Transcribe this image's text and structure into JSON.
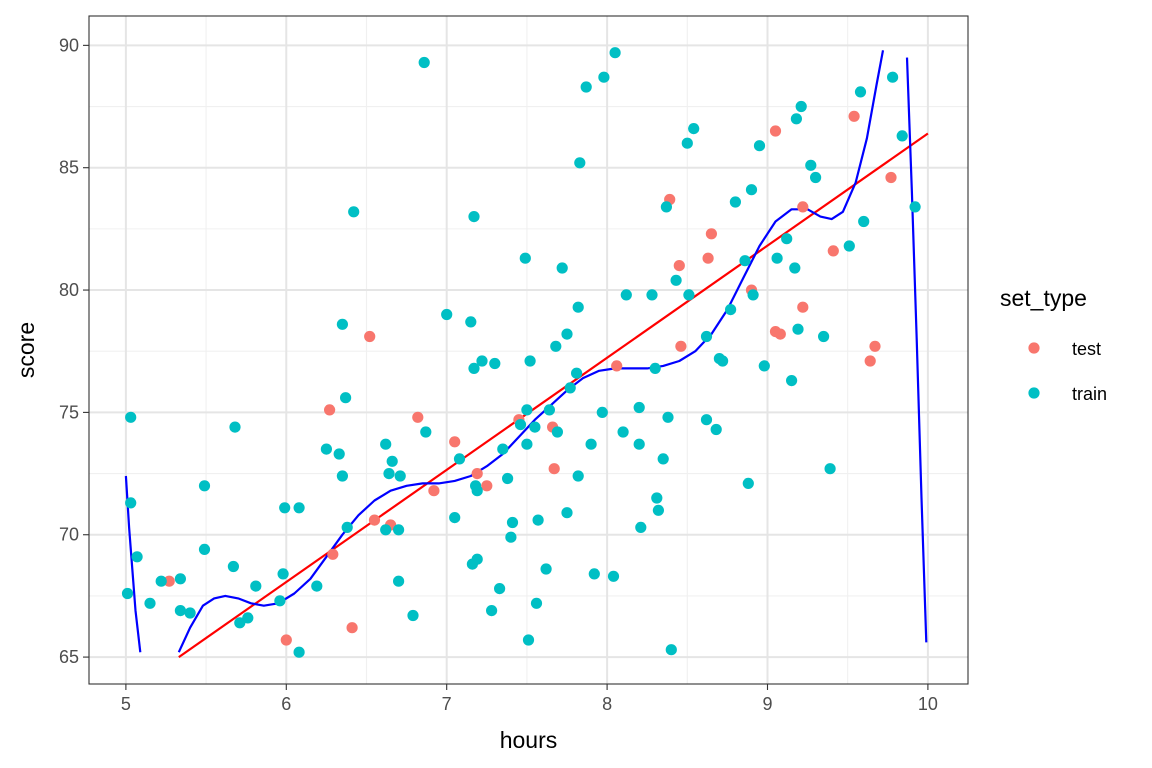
{
  "chart_data": {
    "type": "scatter",
    "xlabel": "hours",
    "ylabel": "score",
    "xlim": [
      4.77,
      10.25
    ],
    "ylim": [
      63.9,
      91.2
    ],
    "x_ticks": [
      5,
      6,
      7,
      8,
      9,
      10
    ],
    "y_ticks": [
      65,
      70,
      75,
      80,
      85,
      90
    ],
    "x_tick_labels": [
      "5",
      "6",
      "7",
      "8",
      "9",
      "10"
    ],
    "y_tick_labels": [
      "65",
      "70",
      "75",
      "80",
      "85",
      "90"
    ],
    "grid": true,
    "legend": {
      "title": "set_type",
      "position": "right",
      "entries": [
        {
          "label": "test",
          "color": "#F8766D"
        },
        {
          "label": "train",
          "color": "#00BFC4"
        }
      ]
    },
    "series": [
      {
        "name": "test",
        "color": "#F8766D",
        "points": [
          [
            5.27,
            68.1
          ],
          [
            6.0,
            65.7
          ],
          [
            6.27,
            75.1
          ],
          [
            6.29,
            69.2
          ],
          [
            6.41,
            66.2
          ],
          [
            6.52,
            78.1
          ],
          [
            6.55,
            70.6
          ],
          [
            6.65,
            70.4
          ],
          [
            6.82,
            74.8
          ],
          [
            6.92,
            71.8
          ],
          [
            7.05,
            73.8
          ],
          [
            7.19,
            72.5
          ],
          [
            7.25,
            72.0
          ],
          [
            7.45,
            74.7
          ],
          [
            7.66,
            74.4
          ],
          [
            7.67,
            72.7
          ],
          [
            8.06,
            76.9
          ],
          [
            8.39,
            83.7
          ],
          [
            8.45,
            81.0
          ],
          [
            8.46,
            77.7
          ],
          [
            8.63,
            81.3
          ],
          [
            8.65,
            82.3
          ],
          [
            8.9,
            80.0
          ],
          [
            9.05,
            86.5
          ],
          [
            9.05,
            78.3
          ],
          [
            9.08,
            78.2
          ],
          [
            9.22,
            83.4
          ],
          [
            9.22,
            79.3
          ],
          [
            9.41,
            81.6
          ],
          [
            9.54,
            87.1
          ],
          [
            9.64,
            77.1
          ],
          [
            9.67,
            77.7
          ],
          [
            9.77,
            84.6
          ]
        ]
      },
      {
        "name": "train",
        "color": "#00BFC4",
        "points": [
          [
            5.01,
            67.6
          ],
          [
            5.03,
            74.8
          ],
          [
            5.03,
            71.3
          ],
          [
            5.07,
            69.1
          ],
          [
            5.15,
            67.2
          ],
          [
            5.22,
            68.1
          ],
          [
            5.34,
            66.9
          ],
          [
            5.34,
            68.2
          ],
          [
            5.4,
            66.8
          ],
          [
            5.49,
            72.0
          ],
          [
            5.49,
            69.4
          ],
          [
            5.67,
            68.7
          ],
          [
            5.68,
            74.4
          ],
          [
            5.71,
            66.4
          ],
          [
            5.76,
            66.6
          ],
          [
            5.81,
            67.9
          ],
          [
            5.96,
            67.3
          ],
          [
            5.98,
            68.4
          ],
          [
            5.99,
            71.1
          ],
          [
            6.08,
            65.2
          ],
          [
            6.08,
            71.1
          ],
          [
            6.19,
            67.9
          ],
          [
            6.25,
            73.5
          ],
          [
            6.33,
            73.3
          ],
          [
            6.35,
            78.6
          ],
          [
            6.35,
            72.4
          ],
          [
            6.37,
            75.6
          ],
          [
            6.38,
            70.3
          ],
          [
            6.42,
            83.2
          ],
          [
            6.62,
            73.7
          ],
          [
            6.62,
            70.2
          ],
          [
            6.64,
            72.5
          ],
          [
            6.66,
            73.0
          ],
          [
            6.7,
            70.2
          ],
          [
            6.7,
            68.1
          ],
          [
            6.71,
            72.4
          ],
          [
            6.79,
            66.7
          ],
          [
            6.86,
            89.3
          ],
          [
            6.87,
            74.2
          ],
          [
            7.0,
            79.0
          ],
          [
            7.05,
            70.7
          ],
          [
            7.08,
            73.1
          ],
          [
            7.15,
            78.7
          ],
          [
            7.16,
            68.8
          ],
          [
            7.17,
            83.0
          ],
          [
            7.17,
            76.8
          ],
          [
            7.18,
            72.0
          ],
          [
            7.19,
            69.0
          ],
          [
            7.19,
            71.8
          ],
          [
            7.22,
            77.1
          ],
          [
            7.28,
            66.9
          ],
          [
            7.3,
            77.0
          ],
          [
            7.33,
            67.8
          ],
          [
            7.35,
            73.5
          ],
          [
            7.38,
            72.3
          ],
          [
            7.4,
            69.9
          ],
          [
            7.41,
            70.5
          ],
          [
            7.46,
            74.5
          ],
          [
            7.49,
            81.3
          ],
          [
            7.5,
            75.1
          ],
          [
            7.5,
            73.7
          ],
          [
            7.51,
            65.7
          ],
          [
            7.52,
            77.1
          ],
          [
            7.55,
            74.4
          ],
          [
            7.56,
            67.2
          ],
          [
            7.57,
            70.6
          ],
          [
            7.62,
            68.6
          ],
          [
            7.64,
            75.1
          ],
          [
            7.68,
            77.7
          ],
          [
            7.69,
            74.2
          ],
          [
            7.72,
            80.9
          ],
          [
            7.75,
            78.2
          ],
          [
            7.75,
            70.9
          ],
          [
            7.77,
            76.0
          ],
          [
            7.81,
            76.6
          ],
          [
            7.82,
            79.3
          ],
          [
            7.82,
            72.4
          ],
          [
            7.83,
            85.2
          ],
          [
            7.87,
            88.3
          ],
          [
            7.9,
            73.7
          ],
          [
            7.92,
            68.4
          ],
          [
            7.97,
            75.0
          ],
          [
            7.98,
            88.7
          ],
          [
            8.04,
            68.3
          ],
          [
            8.05,
            89.7
          ],
          [
            8.1,
            74.2
          ],
          [
            8.12,
            79.8
          ],
          [
            8.2,
            73.7
          ],
          [
            8.2,
            75.2
          ],
          [
            8.21,
            70.3
          ],
          [
            8.28,
            79.8
          ],
          [
            8.3,
            76.8
          ],
          [
            8.31,
            71.5
          ],
          [
            8.32,
            71.0
          ],
          [
            8.35,
            73.1
          ],
          [
            8.37,
            83.4
          ],
          [
            8.38,
            74.8
          ],
          [
            8.4,
            65.3
          ],
          [
            8.43,
            80.4
          ],
          [
            8.5,
            86.0
          ],
          [
            8.51,
            79.8
          ],
          [
            8.54,
            86.6
          ],
          [
            8.62,
            78.1
          ],
          [
            8.62,
            74.7
          ],
          [
            8.68,
            74.3
          ],
          [
            8.7,
            77.2
          ],
          [
            8.72,
            77.1
          ],
          [
            8.77,
            79.2
          ],
          [
            8.8,
            83.6
          ],
          [
            8.86,
            81.2
          ],
          [
            8.88,
            72.1
          ],
          [
            8.9,
            84.1
          ],
          [
            8.91,
            79.8
          ],
          [
            8.95,
            85.9
          ],
          [
            8.98,
            76.9
          ],
          [
            9.06,
            81.3
          ],
          [
            9.12,
            82.1
          ],
          [
            9.15,
            76.3
          ],
          [
            9.17,
            80.9
          ],
          [
            9.18,
            87.0
          ],
          [
            9.19,
            78.4
          ],
          [
            9.21,
            87.5
          ],
          [
            9.27,
            85.1
          ],
          [
            9.3,
            84.6
          ],
          [
            9.35,
            78.1
          ],
          [
            9.39,
            72.7
          ],
          [
            9.51,
            81.8
          ],
          [
            9.58,
            88.1
          ],
          [
            9.6,
            82.8
          ],
          [
            9.78,
            88.7
          ],
          [
            9.84,
            86.3
          ],
          [
            9.92,
            83.4
          ]
        ]
      }
    ],
    "lines": [
      {
        "name": "linear",
        "color": "#FF0000",
        "points": [
          [
            5.33,
            65.0
          ],
          [
            10.0,
            86.4
          ]
        ]
      },
      {
        "name": "polynomial",
        "color": "#0000FF",
        "segments": [
          [
            [
              5.0,
              72.4
            ],
            [
              5.02,
              70.3
            ],
            [
              5.04,
              68.6
            ],
            [
              5.06,
              66.9
            ],
            [
              5.09,
              65.2
            ]
          ],
          [
            [
              5.33,
              65.2
            ],
            [
              5.4,
              66.2
            ],
            [
              5.48,
              67.1
            ],
            [
              5.55,
              67.4
            ],
            [
              5.62,
              67.5
            ],
            [
              5.7,
              67.4
            ],
            [
              5.78,
              67.2
            ],
            [
              5.86,
              67.1
            ],
            [
              5.95,
              67.2
            ],
            [
              6.05,
              67.6
            ],
            [
              6.15,
              68.2
            ],
            [
              6.25,
              69.1
            ],
            [
              6.35,
              70.0
            ],
            [
              6.45,
              70.8
            ],
            [
              6.55,
              71.4
            ],
            [
              6.65,
              71.8
            ],
            [
              6.75,
              72.0
            ],
            [
              6.85,
              72.1
            ],
            [
              6.95,
              72.1
            ],
            [
              7.05,
              72.2
            ],
            [
              7.15,
              72.4
            ],
            [
              7.25,
              72.8
            ],
            [
              7.35,
              73.3
            ],
            [
              7.45,
              74.0
            ],
            [
              7.55,
              74.7
            ],
            [
              7.65,
              75.3
            ],
            [
              7.75,
              75.9
            ],
            [
              7.85,
              76.4
            ],
            [
              7.95,
              76.7
            ],
            [
              8.05,
              76.8
            ],
            [
              8.15,
              76.8
            ],
            [
              8.25,
              76.8
            ],
            [
              8.35,
              76.9
            ],
            [
              8.45,
              77.1
            ],
            [
              8.55,
              77.5
            ],
            [
              8.65,
              78.2
            ],
            [
              8.75,
              79.2
            ],
            [
              8.85,
              80.5
            ],
            [
              8.95,
              81.8
            ],
            [
              9.05,
              82.8
            ],
            [
              9.15,
              83.3
            ],
            [
              9.25,
              83.3
            ],
            [
              9.33,
              83.0
            ],
            [
              9.4,
              82.9
            ],
            [
              9.47,
              83.2
            ],
            [
              9.55,
              84.4
            ],
            [
              9.62,
              86.2
            ],
            [
              9.68,
              88.4
            ],
            [
              9.72,
              89.8
            ]
          ],
          [
            [
              9.87,
              89.5
            ],
            [
              9.9,
              84.0
            ],
            [
              9.93,
              78.0
            ],
            [
              9.96,
              71.5
            ],
            [
              9.99,
              65.6
            ]
          ]
        ]
      }
    ]
  }
}
